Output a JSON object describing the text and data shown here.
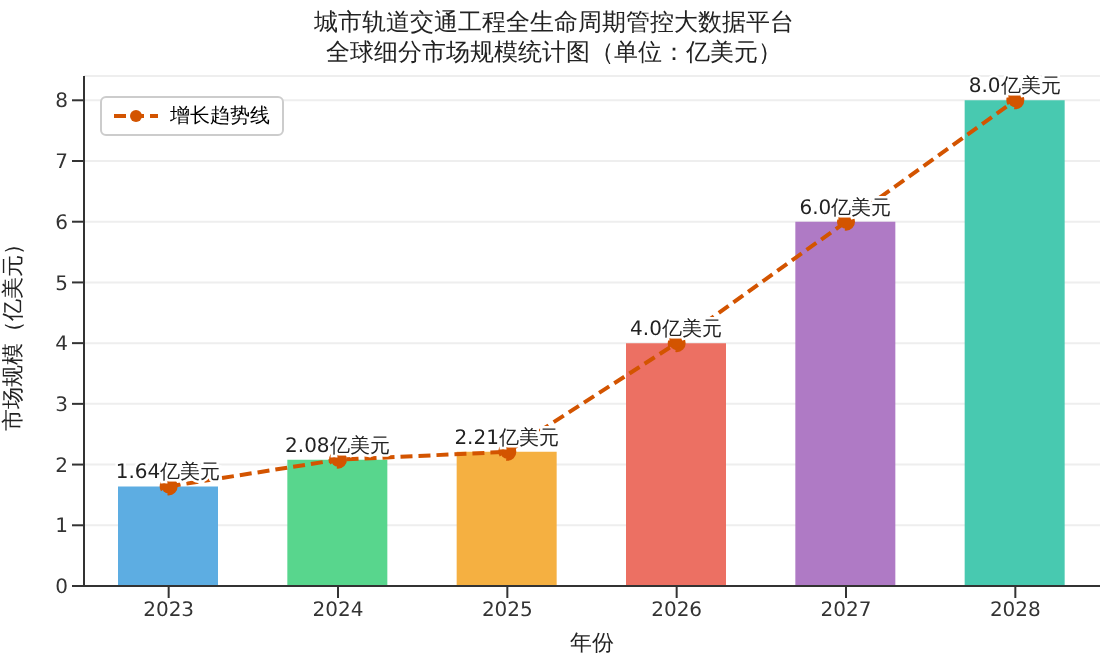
{
  "chart_data": {
    "type": "bar",
    "title": "城市轨道交通工程全生命周期管控大数据平台",
    "subtitle": "全球细分市场规模统计图（单位：亿美元）",
    "xlabel": "年份",
    "ylabel": "市场规模（亿美元）",
    "categories": [
      "2023",
      "2024",
      "2025",
      "2026",
      "2027",
      "2028"
    ],
    "series": [
      {
        "colors": [
          "#5dade2",
          "#58d68d",
          "#f5b041",
          "#ec7063",
          "#af7ac5",
          "#48c9b0"
        ],
        "values": [
          1.64,
          2.08,
          2.21,
          4.0,
          6.0,
          8.0
        ],
        "value_labels": [
          "1.64亿美元",
          "2.08亿美元",
          "2.21亿美元",
          "4.0亿美元",
          "6.0亿美元",
          "8.0亿美元"
        ]
      },
      {
        "type": "line",
        "name": "增长趋势线",
        "color": "#d35400",
        "values": [
          1.64,
          2.08,
          2.21,
          4.0,
          6.0,
          8.0
        ],
        "marker": "circle",
        "line_style": "dashed"
      }
    ],
    "ylim": [
      0,
      8.4
    ],
    "yticks": [
      0,
      1,
      2,
      3,
      4,
      5,
      6,
      7,
      8
    ],
    "grid": "y",
    "legend": "top left"
  }
}
